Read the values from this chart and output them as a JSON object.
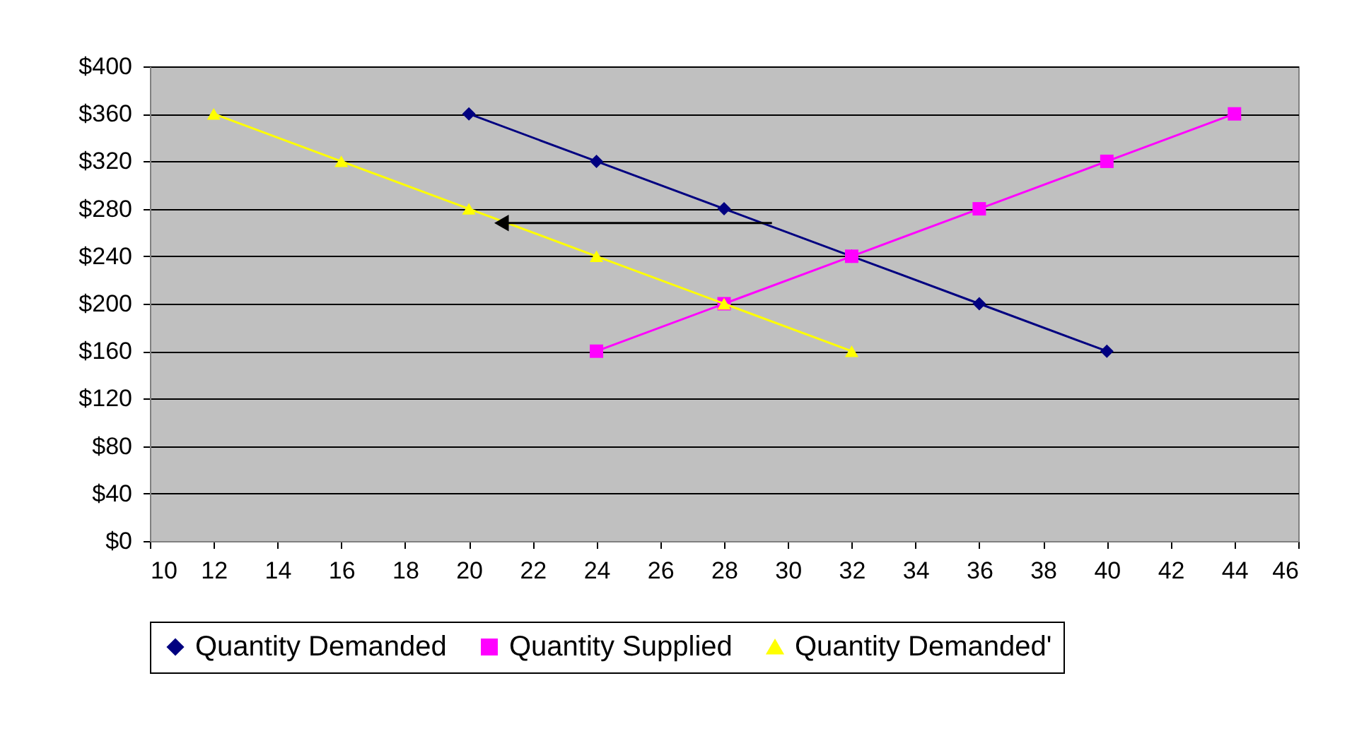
{
  "chart_data": {
    "type": "line",
    "xlim": [
      10,
      46
    ],
    "xticks": [
      10,
      12,
      14,
      16,
      18,
      20,
      22,
      24,
      26,
      28,
      30,
      32,
      34,
      36,
      38,
      40,
      42,
      44,
      46
    ],
    "ylim": [
      0,
      400
    ],
    "yticks": [
      {
        "value": 0,
        "label": "$0"
      },
      {
        "value": 40,
        "label": "$40"
      },
      {
        "value": 80,
        "label": "$80"
      },
      {
        "value": 120,
        "label": "$120"
      },
      {
        "value": 160,
        "label": "$160"
      },
      {
        "value": 200,
        "label": "$200"
      },
      {
        "value": 240,
        "label": "$240"
      },
      {
        "value": 280,
        "label": "$280"
      },
      {
        "value": 320,
        "label": "$320"
      },
      {
        "value": 360,
        "label": "$360"
      },
      {
        "value": 400,
        "label": "$400"
      }
    ],
    "grid": "y",
    "legend": "bottom",
    "line_style": "solid",
    "series": [
      {
        "name": "Quantity Demanded",
        "color": "#000080",
        "marker": "diamond",
        "x": [
          20,
          24,
          28,
          32,
          36,
          40
        ],
        "values": [
          360,
          320,
          280,
          240,
          200,
          160
        ]
      },
      {
        "name": "Quantity Supplied",
        "color": "#ff00ff",
        "marker": "square",
        "x": [
          24,
          28,
          32,
          36,
          40,
          44
        ],
        "values": [
          160,
          200,
          240,
          280,
          320,
          360
        ]
      },
      {
        "name": "Quantity Demanded'",
        "color": "#ffff00",
        "marker": "triangle",
        "x": [
          12,
          16,
          20,
          24,
          28,
          32
        ],
        "values": [
          360,
          320,
          280,
          240,
          200,
          160
        ]
      },
      {
        "type": "line",
        "color": "#000000",
        "marker": "triangle",
        "x": [
          29.5,
          21.2
        ],
        "values": [
          268,
          268
        ]
      }
    ]
  }
}
